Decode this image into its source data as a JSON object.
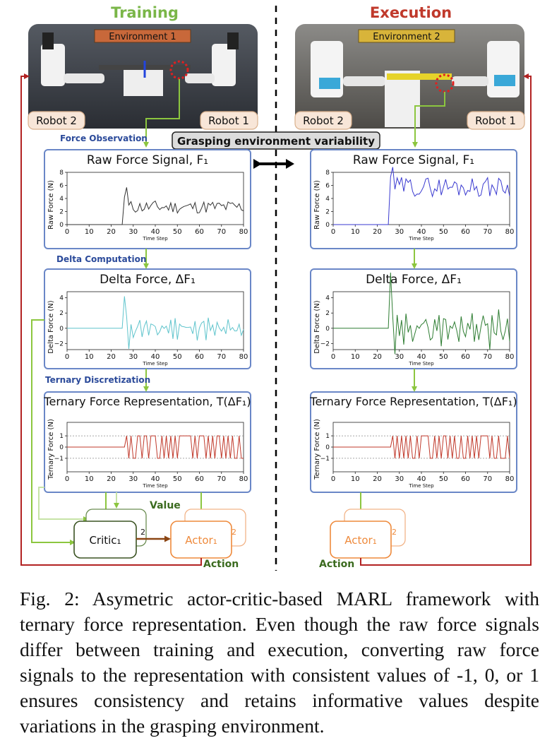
{
  "headers": {
    "training": "Training",
    "execution": "Execution"
  },
  "environments": {
    "left": "Environment 1",
    "right": "Environment 2"
  },
  "robots": {
    "robot2": "Robot 2",
    "robot1": "Robot 1"
  },
  "center_label": "Grasping environment variability",
  "step_labels": {
    "force_observation": "Force Observation",
    "delta_computation": "Delta Computation",
    "ternary_discretization": "Ternary Discretization"
  },
  "panels": {
    "raw": {
      "title": "Raw Force Signal, F₁",
      "ylabel": "Raw Force (N)"
    },
    "delta": {
      "title": "Delta Force, ΔF₁",
      "ylabel": "Delta Force (N)"
    },
    "ternary": {
      "title": "Ternary Force Representation, T(ΔF₁)",
      "ylabel": "Ternary Force (N)"
    }
  },
  "x_axis": {
    "label": "Time Step",
    "ticks": [
      "0",
      "10",
      "20",
      "30",
      "40",
      "50",
      "60",
      "70",
      "80"
    ]
  },
  "y_ticks": {
    "raw": [
      "8",
      "6",
      "4",
      "2",
      "0"
    ],
    "delta": [
      "4",
      "2",
      "0",
      "−2"
    ],
    "ternary": [
      "1",
      "0",
      "−1"
    ]
  },
  "nodes": {
    "critic": "Critic₁",
    "actor": "Actor₁",
    "stack_num": "2",
    "value": "Value",
    "action": "Action"
  },
  "colors": {
    "training_header": "#7ab648",
    "execution_header": "#c0392b",
    "panel_border": "#6a87c7",
    "step_label": "#2b4a9a",
    "arrow_green": "#8cc63f",
    "feedback_red": "#b22222",
    "raw_train_line": "#333333",
    "raw_exec_line": "#3a3ad0",
    "delta_train_line": "#5fc4cc",
    "delta_exec_line": "#2e7d32",
    "ternary_line": "#c0392b",
    "actor_orange": "#ee8a3c",
    "critic_dark": "#3b5323",
    "value_green": "#3b6b1f"
  },
  "caption": {
    "label": "Fig. 2:",
    "text": "Asymetric actor-critic-based MARL framework with ternary force representation. Even though the raw force signals differ between training and execution, converting raw force signals to the representation with consistent values of -1, 0, or 1 ensures consistency and retains informative values despite variations in the grasping environment."
  }
}
